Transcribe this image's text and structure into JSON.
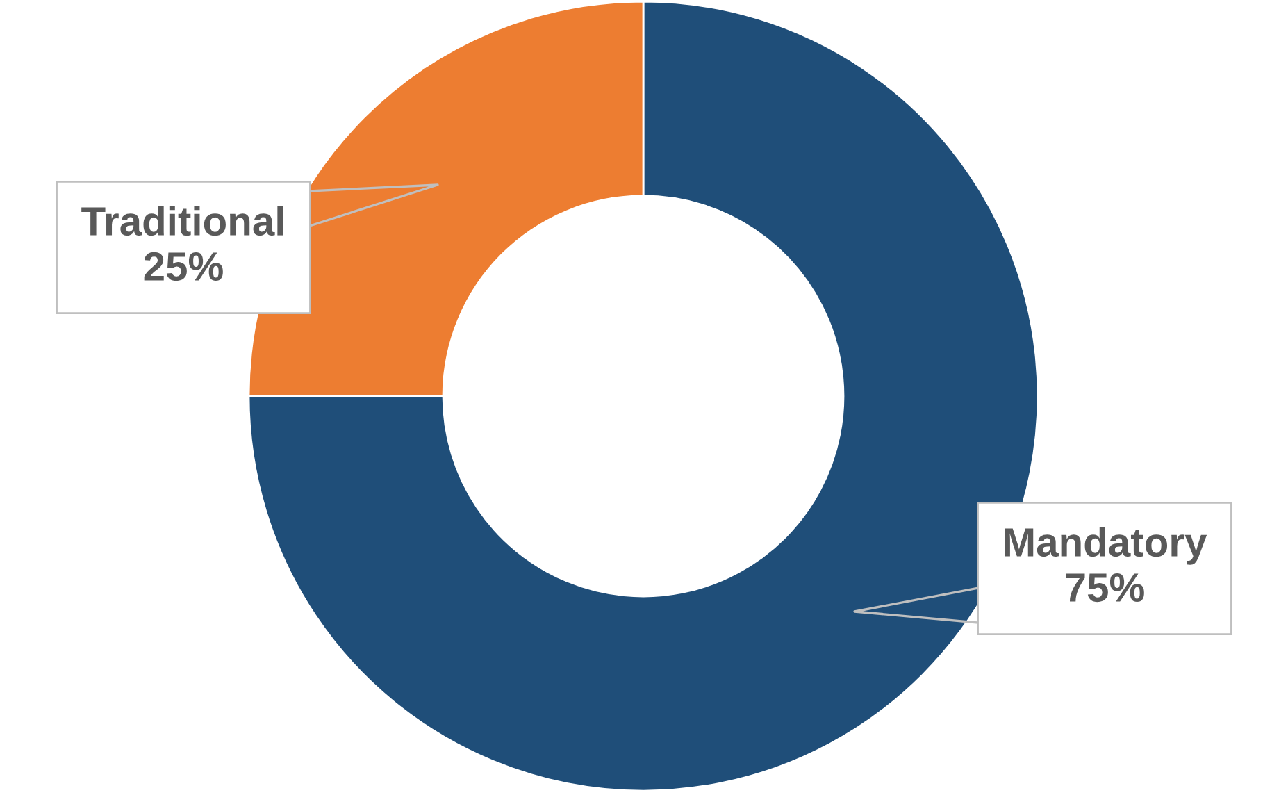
{
  "chart_data": {
    "type": "donut",
    "categories": [
      "Mandatory",
      "Traditional"
    ],
    "values": [
      75,
      25
    ],
    "colors": [
      "#1f4e79",
      "#ed7d31"
    ],
    "value_labels": [
      "75%",
      "25%"
    ],
    "legend": false
  }
}
